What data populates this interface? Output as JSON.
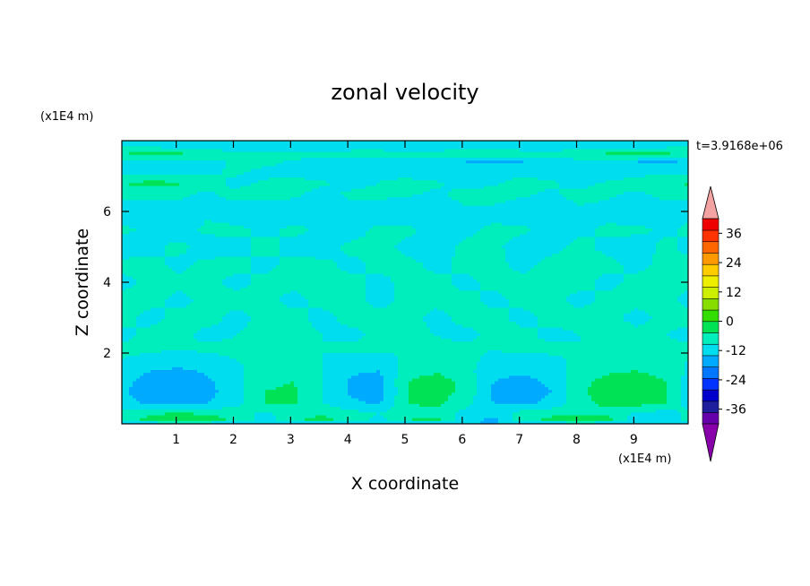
{
  "chart_data": {
    "type": "heatmap",
    "title": "zonal velocity",
    "xlabel": "X coordinate",
    "ylabel": "Z coordinate",
    "x_unit": "(x1E4 m)",
    "y_unit": "(x1E4 m)",
    "time_label": "t=3.9168e+06",
    "xlim": [
      0.05,
      9.95
    ],
    "ylim": [
      0,
      8
    ],
    "x_ticks": [
      1,
      2,
      3,
      4,
      5,
      6,
      7,
      8,
      9
    ],
    "y_ticks": [
      2,
      4,
      6
    ],
    "colorbar": {
      "min": -42,
      "max": 42,
      "step": 6,
      "labels": [
        36,
        24,
        12,
        0,
        -12,
        -24,
        -36
      ],
      "colors": [
        "#6600aa",
        "#1f1f9e",
        "#0000cc",
        "#0033ff",
        "#0077ff",
        "#00aaff",
        "#00ddee",
        "#00eebb",
        "#00e255",
        "#33dd00",
        "#88dd00",
        "#ccee00",
        "#eeee00",
        "#ffcc00",
        "#ff9900",
        "#ff6600",
        "#ff3300",
        "#ee0000"
      ],
      "low_cap_color": "#8800aa",
      "high_cap_color": "#f4a3a3"
    },
    "field": {
      "x": [
        0.05,
        0.55,
        1.05,
        1.55,
        2.05,
        2.55,
        3.05,
        3.55,
        4.05,
        4.55,
        5.05,
        5.55,
        6.05,
        6.55,
        7.05,
        7.55,
        8.05,
        8.55,
        9.05,
        9.55,
        9.95
      ],
      "z": [
        0.0,
        0.1,
        0.3,
        0.6,
        0.9,
        1.2,
        1.5,
        1.8,
        2.1,
        2.5,
        3.0,
        3.5,
        4.0,
        4.5,
        5.0,
        5.5,
        6.0,
        6.5,
        6.8,
        7.1,
        7.4,
        7.6,
        7.9
      ],
      "values": [
        [
          -6,
          -6,
          -6,
          -6,
          -6,
          -6,
          -6,
          -6,
          -6,
          -6,
          -6,
          -6,
          -6,
          -6,
          -6,
          -6,
          -6,
          -6,
          -6,
          -6,
          -6
        ],
        [
          3,
          8,
          12,
          10,
          4,
          -3,
          5,
          8,
          3,
          -2,
          6,
          8,
          -4,
          -8,
          3,
          8,
          10,
          8,
          -4,
          -5,
          3
        ],
        [
          2,
          5,
          6,
          5,
          2,
          -1,
          3,
          5,
          2,
          0,
          3,
          4,
          -2,
          -3,
          2,
          4,
          5,
          4,
          -1,
          -2,
          1
        ],
        [
          -4,
          -7,
          -8,
          -6,
          -2,
          6,
          7,
          0,
          -5,
          -7,
          6,
          8,
          2,
          -6,
          -7,
          -5,
          4,
          8,
          9,
          6,
          -2
        ],
        [
          -5,
          -10,
          -11,
          -8,
          -2,
          6,
          7,
          0,
          -7,
          -9,
          6,
          9,
          4,
          -7,
          -9,
          -6,
          5,
          9,
          10,
          7,
          -3
        ],
        [
          -4,
          -9,
          -10,
          -7,
          -2,
          5,
          6,
          0,
          -7,
          -8,
          6,
          9,
          4,
          -6,
          -8,
          -5,
          4,
          8,
          9,
          6,
          -2
        ],
        [
          -2,
          -6,
          -7,
          -5,
          -1,
          3,
          4,
          0,
          -5,
          -6,
          3,
          5,
          2,
          -4,
          -5,
          -3,
          2,
          5,
          6,
          4,
          -1
        ],
        [
          0,
          -2,
          -3,
          -2,
          0,
          1,
          1,
          0,
          -2,
          -2,
          1,
          2,
          1,
          -1,
          -2,
          -1,
          1,
          2,
          2,
          1,
          0
        ],
        [
          1,
          1,
          0,
          1,
          1,
          1,
          0,
          0,
          1,
          1,
          0,
          1,
          1,
          0,
          1,
          1,
          0,
          1,
          1,
          1,
          1
        ],
        [
          -1,
          1,
          1,
          -1,
          0,
          1,
          1,
          0,
          -1,
          1,
          1,
          0,
          -1,
          1,
          1,
          -1,
          0,
          1,
          1,
          0,
          -1
        ],
        [
          1,
          -1,
          1,
          1,
          -1,
          1,
          1,
          -1,
          1,
          1,
          1,
          -1,
          1,
          1,
          -1,
          1,
          1,
          1,
          -1,
          1,
          1
        ],
        [
          1,
          1,
          -1,
          1,
          1,
          1,
          -1,
          1,
          1,
          -1,
          1,
          1,
          1,
          -1,
          1,
          1,
          -1,
          1,
          1,
          1,
          -1
        ],
        [
          -1,
          1,
          1,
          1,
          -1,
          1,
          1,
          1,
          1,
          -1,
          1,
          1,
          -1,
          1,
          1,
          1,
          1,
          -1,
          1,
          1,
          1
        ],
        [
          1,
          1,
          -1,
          1,
          1,
          -1,
          1,
          1,
          -1,
          1,
          1,
          -1,
          1,
          1,
          -1,
          1,
          1,
          1,
          -1,
          1,
          1
        ],
        [
          -2,
          -1,
          1,
          -2,
          -1,
          1,
          -1,
          -2,
          1,
          1,
          -1,
          -2,
          1,
          1,
          -2,
          -1,
          1,
          -1,
          -2,
          1,
          -1
        ],
        [
          1,
          -1,
          -2,
          1,
          1,
          -1,
          1,
          -1,
          -2,
          1,
          1,
          -2,
          -1,
          1,
          1,
          -2,
          -1,
          1,
          1,
          -1,
          1
        ],
        [
          -3,
          -4,
          -2,
          -1,
          -3,
          -5,
          -3,
          -1,
          -2,
          -4,
          -5,
          -3,
          -1,
          -2,
          -4,
          -3,
          -1,
          -2,
          -4,
          -3,
          -2
        ],
        [
          2,
          3,
          1,
          -1,
          2,
          3,
          1,
          -2,
          1,
          2,
          1,
          -1,
          2,
          3,
          1,
          -1,
          2,
          1,
          -1,
          2,
          1
        ],
        [
          6,
          8,
          7,
          3,
          -2,
          1,
          4,
          1,
          -2,
          0,
          3,
          1,
          -3,
          -1,
          2,
          1,
          -2,
          1,
          3,
          5,
          7
        ],
        [
          -2,
          -4,
          -3,
          -1,
          1,
          -2,
          -4,
          -5,
          -3,
          -1,
          -4,
          -6,
          -5,
          -2,
          -1,
          -3,
          -5,
          -4,
          -2,
          -1,
          -3
        ],
        [
          -3,
          -6,
          -5,
          -2,
          1,
          2,
          -1,
          -3,
          -4,
          -2,
          -3,
          -5,
          -6,
          -7,
          -6,
          -4,
          -2,
          -4,
          -6,
          -7,
          -5
        ],
        [
          7,
          9,
          8,
          4,
          1,
          2,
          3,
          1,
          2,
          3,
          1,
          2,
          4,
          6,
          3,
          1,
          4,
          8,
          9,
          8,
          6
        ],
        [
          -3,
          -4,
          -5,
          -4,
          -3,
          -4,
          -5,
          -4,
          -3,
          -4,
          -5,
          -4,
          -3,
          -4,
          -5,
          -4,
          -3,
          -4,
          -5,
          -4,
          -3
        ]
      ]
    }
  }
}
